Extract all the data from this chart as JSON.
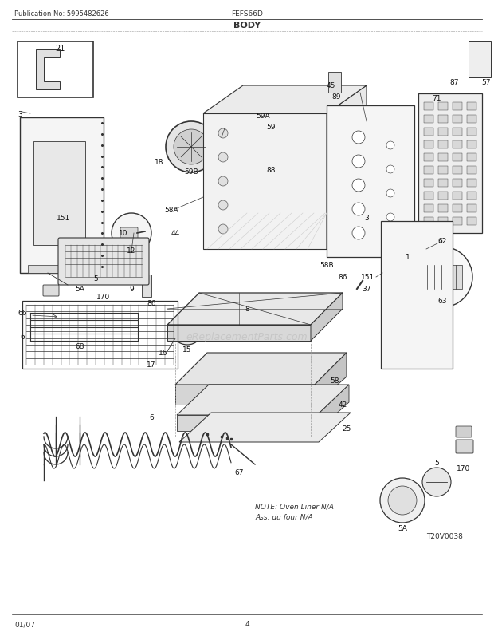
{
  "title_center": "BODY",
  "title_left": "Publication No: 5995482626",
  "title_right": "FEFS66D",
  "footer_left": "01/07",
  "footer_center": "4",
  "watermark": "eReplacementParts.com",
  "ref_code": "T20V0038",
  "note_text": "NOTE: Oven Liner N/A\nAss. du four N/A",
  "bg_color": "#ffffff",
  "line_color": "#333333",
  "label_color": "#111111"
}
